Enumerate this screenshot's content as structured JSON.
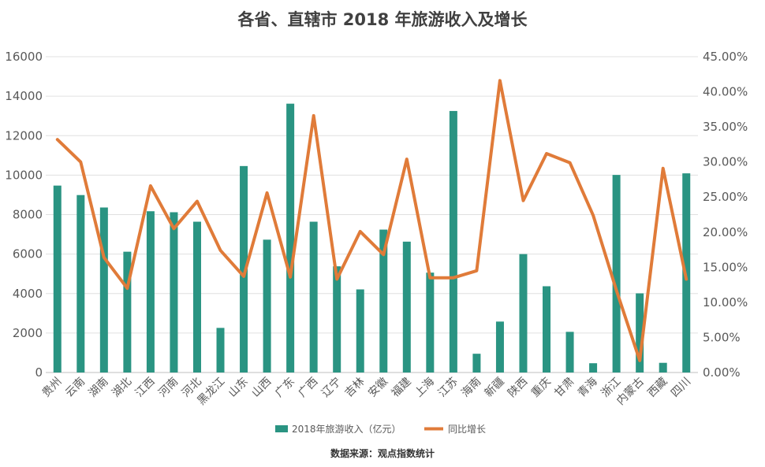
{
  "chart_data": {
    "type": "bar+line",
    "title": "各省、直辖市 2018 年旅游收入及增长",
    "source": "数据来源：观点指数统计",
    "categories": [
      "贵州",
      "云南",
      "湖南",
      "湖北",
      "江西",
      "河南",
      "河北",
      "黑龙江",
      "山东",
      "山西",
      "广东",
      "广西",
      "辽宁",
      "吉林",
      "安徽",
      "福建",
      "上海",
      "江苏",
      "海南",
      "新疆",
      "陕西",
      "重庆",
      "甘肃",
      "青海",
      "浙江",
      "内蒙古",
      "西藏",
      "四川"
    ],
    "series": [
      {
        "name": "2018年旅游收入（亿元）",
        "type": "bar",
        "axis": "left",
        "color": "#2a9482",
        "values": [
          9470,
          8990,
          8360,
          6120,
          8170,
          8120,
          7640,
          2260,
          10460,
          6730,
          13620,
          7640,
          5380,
          4210,
          7240,
          6630,
          5060,
          13250,
          950,
          2580,
          6000,
          4370,
          2060,
          470,
          10010,
          4010,
          490,
          10090
        ]
      },
      {
        "name": "同比增长",
        "type": "line",
        "axis": "right",
        "color": "#e07b39",
        "values": [
          0.332,
          0.3,
          0.164,
          0.12,
          0.266,
          0.205,
          0.244,
          0.174,
          0.137,
          0.256,
          0.136,
          0.366,
          0.133,
          0.201,
          0.168,
          0.304,
          0.135,
          0.135,
          0.145,
          0.416,
          0.245,
          0.312,
          0.299,
          0.224,
          0.117,
          0.017,
          0.291,
          0.133
        ]
      }
    ],
    "y_left": {
      "ylim": [
        0,
        16000
      ],
      "ticks": [
        "0",
        "2000",
        "4000",
        "6000",
        "8000",
        "10000",
        "12000",
        "14000",
        "16000"
      ]
    },
    "y_right": {
      "ylim": [
        0,
        0.45
      ],
      "ticks": [
        "0.00%",
        "5.00%",
        "10.00%",
        "15.00%",
        "20.00%",
        "25.00%",
        "30.00%",
        "35.00%",
        "40.00%",
        "45.00%"
      ]
    },
    "grid": true,
    "legend_position": "bottom"
  }
}
